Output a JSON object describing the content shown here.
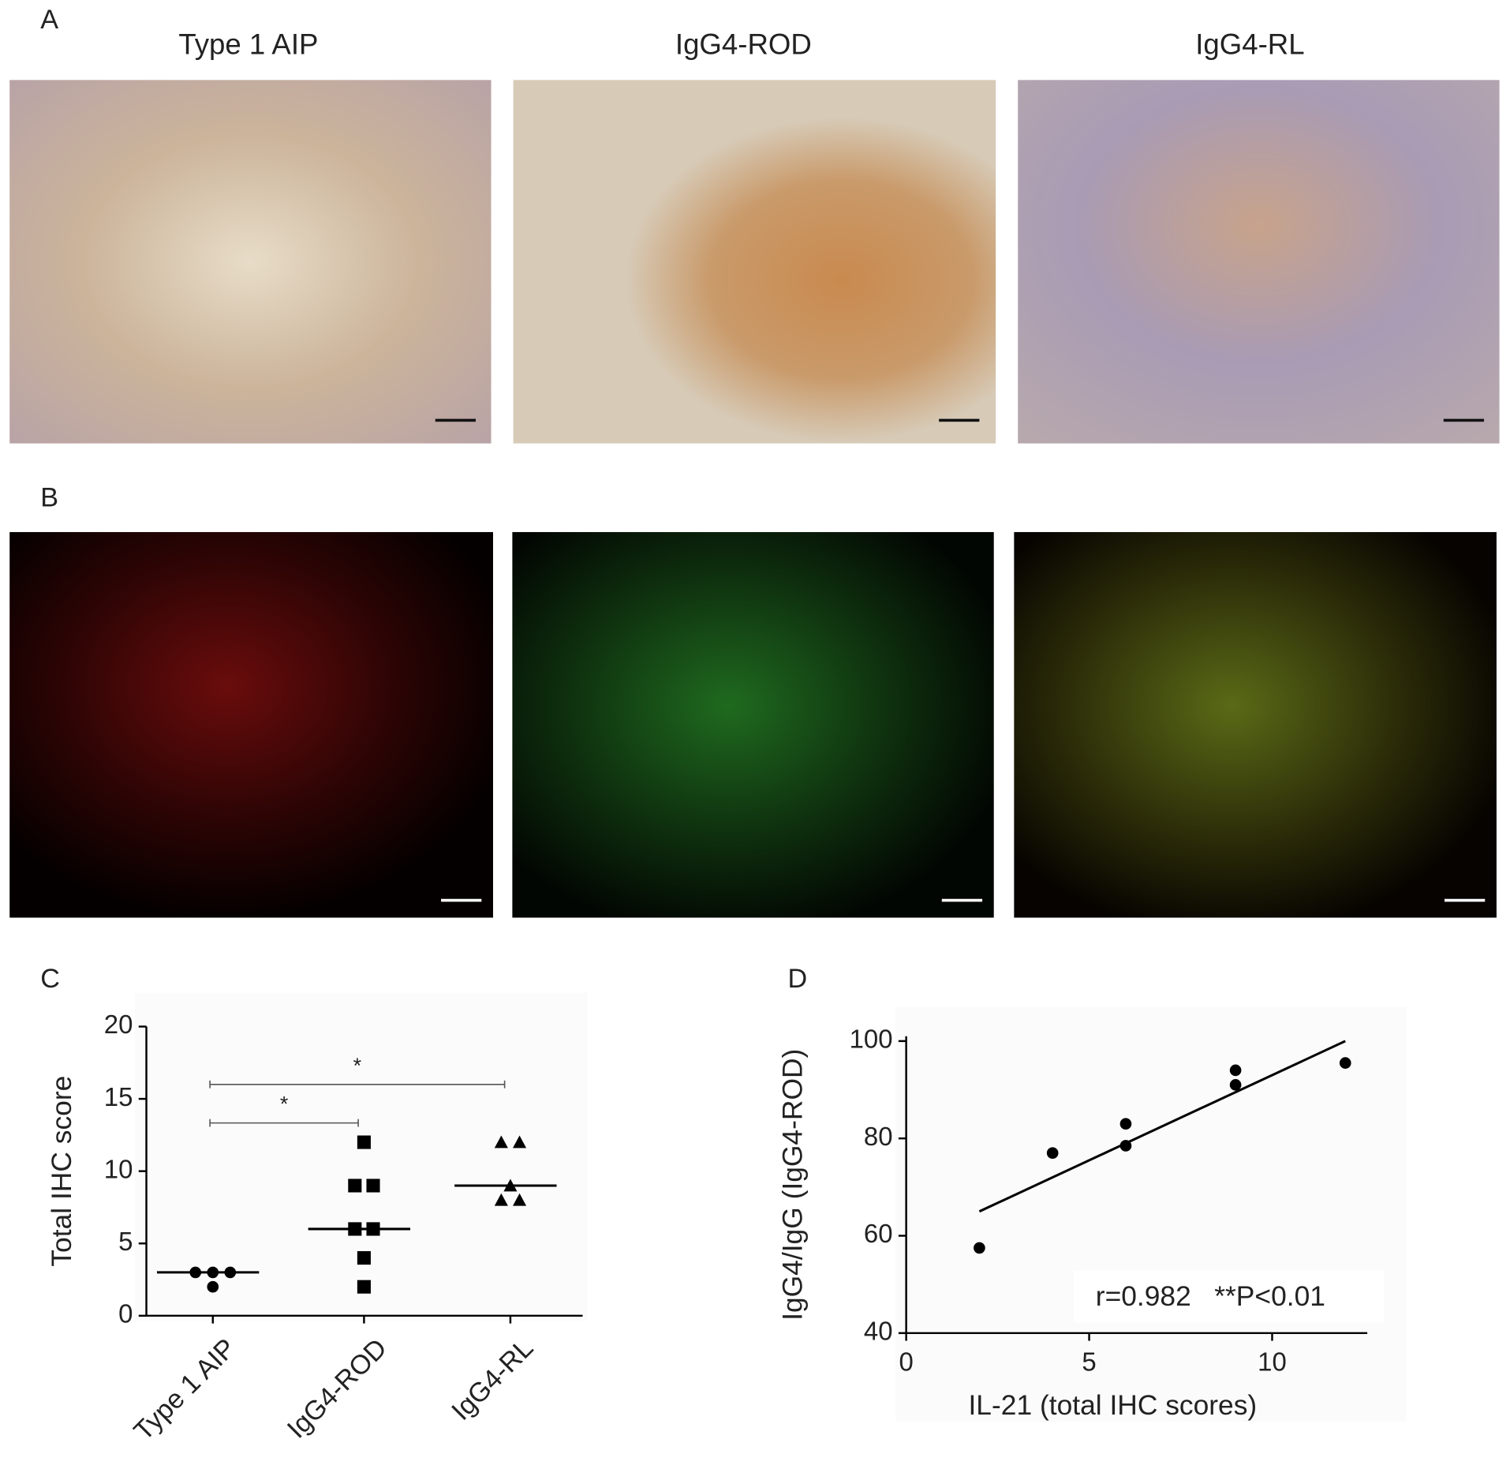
{
  "panel_labels": [
    "A",
    "B",
    "C",
    "D"
  ],
  "micrograph_titles": [
    "Type 1 AIP",
    "IgG4-ROD",
    "IgG4-RL"
  ],
  "chart_data": [
    {
      "type": "dotplot",
      "ylabel": "Total IHC score",
      "categories": [
        "Type 1 AIP",
        "IgG4-ROD",
        "IgG4-RL"
      ],
      "values": [
        [
          3,
          2,
          3,
          3
        ],
        [
          12,
          9,
          9,
          6,
          6,
          4,
          2
        ],
        [
          12,
          12,
          9,
          8,
          8
        ]
      ],
      "medians": [
        3,
        6,
        9
      ],
      "markers": [
        "circle",
        "square",
        "triangle"
      ],
      "color": "#000000",
      "ylim": [
        0,
        20
      ],
      "yticks": [
        0,
        5,
        10,
        15,
        20
      ],
      "brackets": [
        {
          "between": [
            "Type 1 AIP",
            "IgG4-RL"
          ],
          "label": "*"
        },
        {
          "between": [
            "Type 1 AIP",
            "IgG4-ROD"
          ],
          "label": "*"
        }
      ]
    },
    {
      "type": "scatter",
      "xlabel": "IL-21 (total IHC scores)",
      "ylabel": "IgG4/IgG (IgG4-ROD)",
      "x": [
        2,
        4,
        6,
        6,
        9,
        9,
        12
      ],
      "y": [
        57.5,
        77,
        83,
        78.5,
        94,
        91,
        95.5
      ],
      "color": "#000000",
      "fit_line": {
        "x": [
          2,
          12
        ],
        "y": [
          65,
          100
        ]
      },
      "annotation": "r=0.982   **P<0.01",
      "xlim": [
        0,
        12.6
      ],
      "xticks": [
        0,
        5,
        10
      ],
      "ylim": [
        40,
        101
      ],
      "yticks": [
        40,
        60,
        80,
        100
      ]
    }
  ]
}
